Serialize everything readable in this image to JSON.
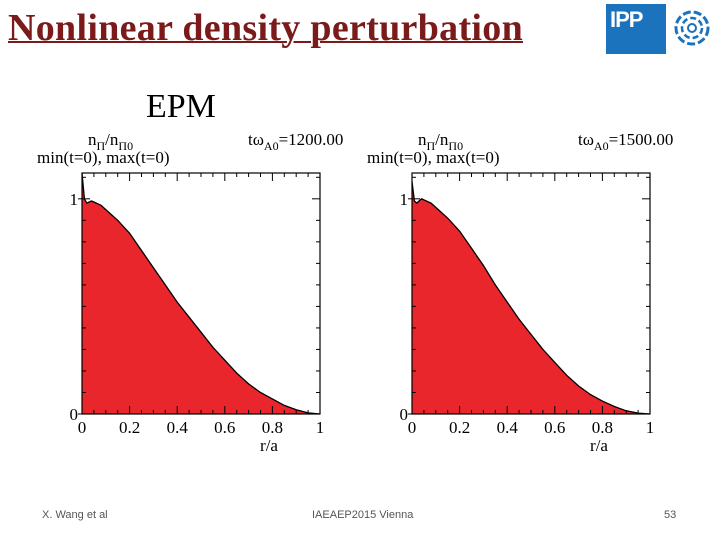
{
  "slide": {
    "title": "Nonlinear density perturbation",
    "subtitle": "EPM",
    "logo_text": "IPP",
    "footer": {
      "author": "X. Wang et al",
      "conference": "IAEAEP2015 Vienna",
      "page": "53"
    }
  },
  "colors": {
    "title": "#7a1a1a",
    "fill": "#e8262b",
    "logo_blue": "#1c73bd"
  },
  "chart_data": [
    {
      "type": "area",
      "ylabel_main": "n",
      "ylabel_sub": "Π",
      "ylabel_slash": "/n",
      "ylabel_sub2": "Π0",
      "scale_label": "min(t=0), max(t=0)",
      "time_prefix": "tω",
      "time_sub": "A0",
      "time_value": "=1200.00",
      "xlabel": "r/a",
      "xticks": [
        "0",
        "0.2",
        "0.4",
        "0.6",
        "0.8",
        "1"
      ],
      "yticks": [
        "0",
        "1"
      ],
      "xlim": [
        0,
        1
      ],
      "ylim": [
        0,
        1.12
      ],
      "x": [
        0,
        0.01,
        0.02,
        0.04,
        0.06,
        0.08,
        0.1,
        0.15,
        0.2,
        0.25,
        0.3,
        0.35,
        0.4,
        0.45,
        0.5,
        0.55,
        0.6,
        0.65,
        0.7,
        0.75,
        0.8,
        0.85,
        0.9,
        0.95,
        1.0
      ],
      "y": [
        1.12,
        1.0,
        0.98,
        0.99,
        0.98,
        0.97,
        0.95,
        0.9,
        0.84,
        0.76,
        0.68,
        0.6,
        0.52,
        0.45,
        0.38,
        0.31,
        0.25,
        0.19,
        0.14,
        0.1,
        0.07,
        0.04,
        0.02,
        0.005,
        0.0
      ]
    },
    {
      "type": "area",
      "ylabel_main": "n",
      "ylabel_sub": "Π",
      "ylabel_slash": "/n",
      "ylabel_sub2": "Π0",
      "scale_label": "min(t=0), max(t=0)",
      "time_prefix": "tω",
      "time_sub": "A0",
      "time_value": "=1500.00",
      "xlabel": "r/a",
      "xticks": [
        "0",
        "0.2",
        "0.4",
        "0.6",
        "0.8",
        "1"
      ],
      "yticks": [
        "0",
        "1"
      ],
      "xlim": [
        0,
        1
      ],
      "ylim": [
        0,
        1.12
      ],
      "x": [
        0,
        0.01,
        0.02,
        0.04,
        0.06,
        0.08,
        0.1,
        0.15,
        0.2,
        0.25,
        0.3,
        0.35,
        0.4,
        0.45,
        0.5,
        0.55,
        0.6,
        0.65,
        0.7,
        0.75,
        0.8,
        0.85,
        0.9,
        0.95,
        1.0
      ],
      "y": [
        1.08,
        0.99,
        0.98,
        1.0,
        0.99,
        0.98,
        0.96,
        0.91,
        0.85,
        0.77,
        0.69,
        0.6,
        0.52,
        0.44,
        0.37,
        0.3,
        0.24,
        0.18,
        0.13,
        0.09,
        0.06,
        0.035,
        0.015,
        0.004,
        0.0
      ]
    }
  ]
}
